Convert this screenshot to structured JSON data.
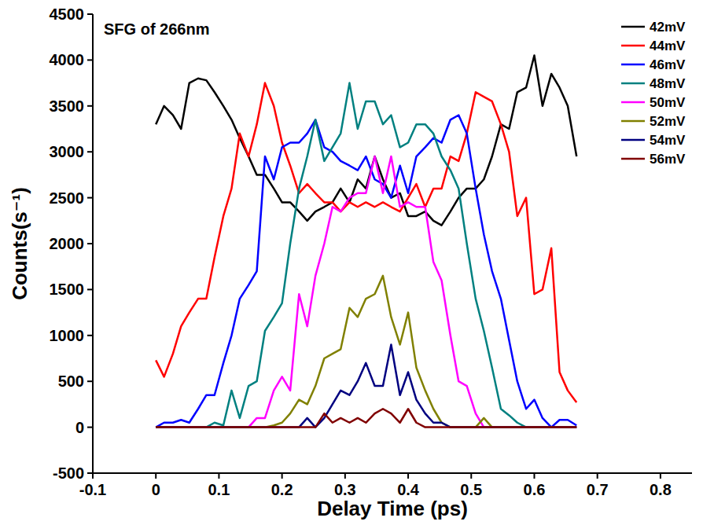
{
  "chart_data": {
    "type": "line",
    "title": "SFG of 266nm",
    "x_label": "Delay Time (ps)",
    "y_label": "Counts(s⁻¹)",
    "xlim": [
      -0.1,
      0.85
    ],
    "xticks": [
      -0.1,
      0.0,
      0.1,
      0.2,
      0.3,
      0.4,
      0.5,
      0.6,
      0.7,
      0.8
    ],
    "ylim": [
      -500,
      4500
    ],
    "yticks": [
      -500,
      0,
      500,
      1000,
      1500,
      2000,
      2500,
      3000,
      3500,
      4000,
      4500
    ],
    "grid": false,
    "legend": "top-right",
    "x": [
      0.0,
      0.013,
      0.027,
      0.04,
      0.053,
      0.067,
      0.08,
      0.093,
      0.107,
      0.12,
      0.133,
      0.147,
      0.16,
      0.173,
      0.187,
      0.2,
      0.213,
      0.227,
      0.24,
      0.253,
      0.267,
      0.28,
      0.293,
      0.307,
      0.32,
      0.333,
      0.347,
      0.36,
      0.373,
      0.387,
      0.4,
      0.413,
      0.427,
      0.44,
      0.453,
      0.467,
      0.48,
      0.493,
      0.507,
      0.52,
      0.533,
      0.547,
      0.56,
      0.573,
      0.587,
      0.6,
      0.613,
      0.627,
      0.64,
      0.653,
      0.667
    ],
    "series": [
      {
        "name": "42mV",
        "color": "#000000",
        "values": [
          3300,
          3500,
          3400,
          3250,
          3750,
          3800,
          3780,
          3650,
          3500,
          3350,
          3150,
          2950,
          2750,
          2750,
          2600,
          2450,
          2450,
          2350,
          2250,
          2350,
          2400,
          2450,
          2600,
          2450,
          2700,
          2600,
          2950,
          2700,
          2500,
          2550,
          2300,
          2300,
          2350,
          2250,
          2200,
          2350,
          2500,
          2600,
          2600,
          2700,
          2950,
          3300,
          3250,
          3650,
          3700,
          4050,
          3500,
          3850,
          3700,
          3500,
          2950
        ]
      },
      {
        "name": "44mV",
        "color": "#ff0000",
        "values": [
          730,
          550,
          800,
          1100,
          1250,
          1400,
          1400,
          1850,
          2300,
          2600,
          3200,
          2950,
          3300,
          3750,
          3500,
          3100,
          2850,
          2550,
          2650,
          2550,
          2450,
          2450,
          2350,
          2450,
          2400,
          2450,
          2400,
          2450,
          2400,
          2350,
          2500,
          2650,
          2400,
          2600,
          2600,
          2950,
          2900,
          3200,
          3650,
          3600,
          3550,
          3300,
          3000,
          2300,
          2500,
          1450,
          1500,
          1950,
          600,
          400,
          270
        ]
      },
      {
        "name": "46mV",
        "color": "#0000ff",
        "values": [
          0,
          50,
          50,
          80,
          50,
          200,
          350,
          350,
          700,
          1000,
          1400,
          1550,
          1700,
          2950,
          2700,
          3050,
          3100,
          3100,
          3200,
          3350,
          3050,
          3000,
          2900,
          2850,
          2800,
          2950,
          2700,
          2650,
          2500,
          2850,
          2550,
          2950,
          3050,
          3150,
          3100,
          3350,
          3400,
          3200,
          2600,
          2100,
          1700,
          1400,
          950,
          500,
          200,
          300,
          100,
          0,
          80,
          80,
          20
        ]
      },
      {
        "name": "48mV",
        "color": "#008080",
        "values": [
          0,
          0,
          0,
          0,
          0,
          0,
          0,
          50,
          20,
          400,
          100,
          450,
          500,
          1050,
          1200,
          1350,
          2000,
          2600,
          2950,
          3350,
          2900,
          3050,
          3200,
          3750,
          3250,
          3550,
          3550,
          3300,
          3400,
          3050,
          3100,
          3300,
          3300,
          3200,
          2950,
          2800,
          2600,
          2000,
          1400,
          1050,
          650,
          200,
          130,
          50,
          0,
          0,
          0,
          0,
          0,
          0,
          0
        ]
      },
      {
        "name": "50mV",
        "color": "#ff00ff",
        "values": [
          0,
          0,
          0,
          0,
          0,
          0,
          0,
          0,
          0,
          0,
          0,
          0,
          100,
          100,
          400,
          550,
          400,
          1450,
          1100,
          1650,
          2000,
          2400,
          2350,
          2500,
          2550,
          2550,
          2950,
          2550,
          2950,
          2400,
          2450,
          2400,
          2400,
          1800,
          1600,
          1000,
          500,
          450,
          150,
          0,
          0,
          0,
          0,
          0,
          0,
          0,
          0,
          0,
          0,
          0,
          0
        ]
      },
      {
        "name": "52mV",
        "color": "#808000",
        "values": [
          0,
          0,
          0,
          0,
          0,
          0,
          0,
          0,
          0,
          0,
          0,
          0,
          0,
          0,
          20,
          50,
          150,
          300,
          250,
          450,
          750,
          800,
          850,
          1300,
          1200,
          1400,
          1450,
          1650,
          1200,
          900,
          1250,
          650,
          400,
          200,
          50,
          0,
          0,
          0,
          0,
          100,
          0,
          0,
          0,
          0,
          0,
          0,
          0,
          0,
          0,
          0,
          0
        ]
      },
      {
        "name": "54mV",
        "color": "#000080",
        "values": [
          0,
          0,
          0,
          0,
          0,
          0,
          0,
          0,
          0,
          0,
          0,
          0,
          0,
          0,
          0,
          0,
          0,
          0,
          100,
          0,
          100,
          250,
          400,
          350,
          500,
          700,
          450,
          450,
          900,
          350,
          600,
          300,
          150,
          50,
          50,
          0,
          0,
          0,
          0,
          0,
          0,
          0,
          0,
          0,
          0,
          0,
          0,
          0,
          0,
          0,
          0
        ]
      },
      {
        "name": "56mV",
        "color": "#800000",
        "values": [
          0,
          0,
          0,
          0,
          0,
          0,
          0,
          0,
          0,
          0,
          0,
          0,
          0,
          0,
          0,
          0,
          0,
          0,
          0,
          0,
          150,
          50,
          100,
          50,
          100,
          50,
          150,
          200,
          150,
          50,
          200,
          50,
          0,
          0,
          0,
          0,
          0,
          0,
          0,
          0,
          0,
          0,
          0,
          0,
          0,
          0,
          0,
          0,
          0,
          0,
          0
        ]
      }
    ]
  }
}
